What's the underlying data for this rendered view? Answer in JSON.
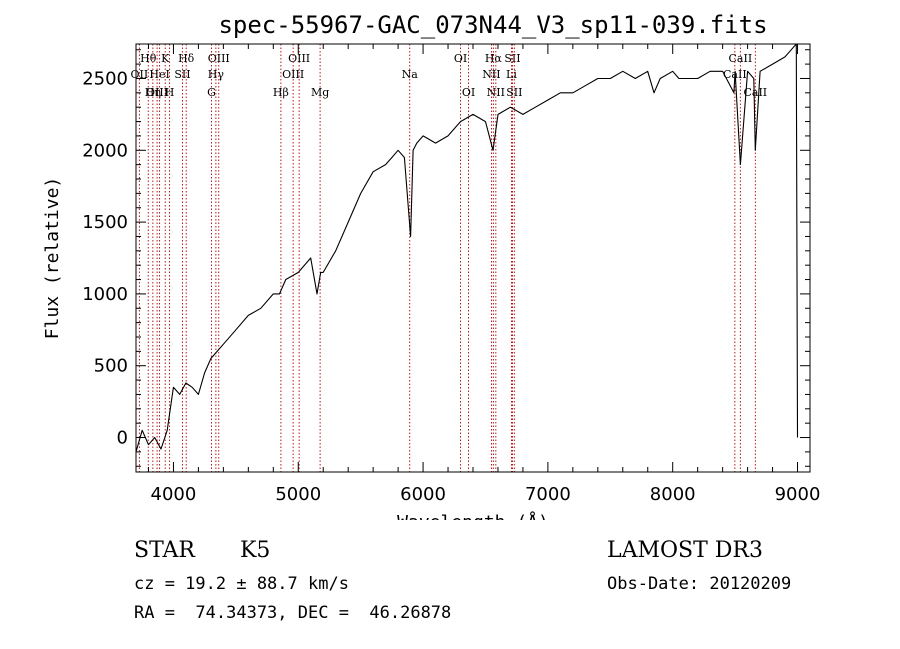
{
  "chart_data": {
    "type": "line",
    "title": "spec-55967-GAC_073N44_V3_sp11-039.fits",
    "xlabel": "Wavelength (Å)",
    "ylabel": "Flux (relative)",
    "xlim": [
      3700,
      9100
    ],
    "ylim": [
      -240,
      2740
    ],
    "xticks": [
      4000,
      5000,
      6000,
      7000,
      8000,
      9000
    ],
    "yticks": [
      0,
      500,
      1000,
      1500,
      2000,
      2500
    ],
    "grid": false,
    "series": [
      {
        "name": "flux",
        "x": [
          3700,
          3750,
          3800,
          3850,
          3900,
          3950,
          4000,
          4050,
          4100,
          4150,
          4200,
          4250,
          4300,
          4350,
          4400,
          4500,
          4600,
          4700,
          4800,
          4850,
          4900,
          5000,
          5100,
          5150,
          5180,
          5200,
          5300,
          5400,
          5500,
          5600,
          5700,
          5750,
          5800,
          5850,
          5900,
          5920,
          5950,
          6000,
          6100,
          6200,
          6300,
          6400,
          6500,
          6560,
          6600,
          6700,
          6800,
          6900,
          7000,
          7100,
          7200,
          7300,
          7400,
          7500,
          7600,
          7700,
          7800,
          7850,
          7900,
          8000,
          8050,
          8100,
          8200,
          8300,
          8400,
          8490,
          8500,
          8542,
          8600,
          8650,
          8662,
          8700,
          8800,
          8900,
          8950,
          8990,
          9000
        ],
        "y": [
          -100,
          50,
          -50,
          0,
          -80,
          50,
          350,
          300,
          380,
          350,
          300,
          450,
          550,
          600,
          650,
          750,
          850,
          900,
          1000,
          1000,
          1100,
          1150,
          1250,
          1000,
          1150,
          1150,
          1300,
          1500,
          1700,
          1850,
          1900,
          1950,
          2000,
          1950,
          1400,
          2000,
          2050,
          2100,
          2050,
          2100,
          2200,
          2250,
          2200,
          2000,
          2250,
          2300,
          2250,
          2300,
          2350,
          2400,
          2400,
          2450,
          2500,
          2500,
          2550,
          2500,
          2550,
          2400,
          2500,
          2550,
          2500,
          2500,
          2500,
          2550,
          2550,
          2400,
          2550,
          1900,
          2550,
          2500,
          2000,
          2550,
          2600,
          2650,
          2700,
          2740,
          0
        ]
      }
    ],
    "lines": [
      {
        "label": "Hθ",
        "wavelength": 3798,
        "row": 1
      },
      {
        "label": "OII",
        "wavelength": 3727,
        "row": 2
      },
      {
        "label": "OIII",
        "wavelength": 3869,
        "row": 3
      },
      {
        "label": "K",
        "wavelength": 3934,
        "row": 1
      },
      {
        "label": "Hη",
        "wavelength": 3835,
        "row": 3
      },
      {
        "label": "HeI",
        "wavelength": 3889,
        "row": 2
      },
      {
        "label": "H",
        "wavelength": 3969,
        "row": 3
      },
      {
        "label": "SII",
        "wavelength": 4072,
        "row": 2
      },
      {
        "label": "Hδ",
        "wavelength": 4102,
        "row": 1
      },
      {
        "label": "OIII",
        "wavelength": 4363,
        "row": 1
      },
      {
        "label": "Hγ",
        "wavelength": 4340,
        "row": 2
      },
      {
        "label": "G",
        "wavelength": 4305,
        "row": 3
      },
      {
        "label": "Hβ",
        "wavelength": 4861,
        "row": 3
      },
      {
        "label": "OIII",
        "wavelength": 5007,
        "row": 1
      },
      {
        "label": "OIII",
        "wavelength": 4959,
        "row": 2
      },
      {
        "label": "Mg",
        "wavelength": 5175,
        "row": 3
      },
      {
        "label": "Na",
        "wavelength": 5893,
        "row": 2
      },
      {
        "label": "OI",
        "wavelength": 6300,
        "row": 1
      },
      {
        "label": "OI",
        "wavelength": 6364,
        "row": 3
      },
      {
        "label": "Hα",
        "wavelength": 6563,
        "row": 1
      },
      {
        "label": "NII",
        "wavelength": 6548,
        "row": 2
      },
      {
        "label": "NII",
        "wavelength": 6583,
        "row": 3
      },
      {
        "label": "SII",
        "wavelength": 6716,
        "row": 1
      },
      {
        "label": "Li",
        "wavelength": 6708,
        "row": 2
      },
      {
        "label": "SII",
        "wavelength": 6731,
        "row": 3
      },
      {
        "label": "CaII",
        "wavelength": 8542,
        "row": 1
      },
      {
        "label": "CaII",
        "wavelength": 8498,
        "row": 2
      },
      {
        "label": "CaII",
        "wavelength": 8662,
        "row": 3
      }
    ]
  },
  "info": {
    "class": "STAR",
    "subclass": "K5",
    "survey": "LAMOST DR3",
    "redshift_text": "cz = 19.2 ± 88.7 km/s",
    "obs_date_text": "Obs-Date: 20120209",
    "coords_text": "RA =  74.34373, DEC =  46.26878"
  }
}
